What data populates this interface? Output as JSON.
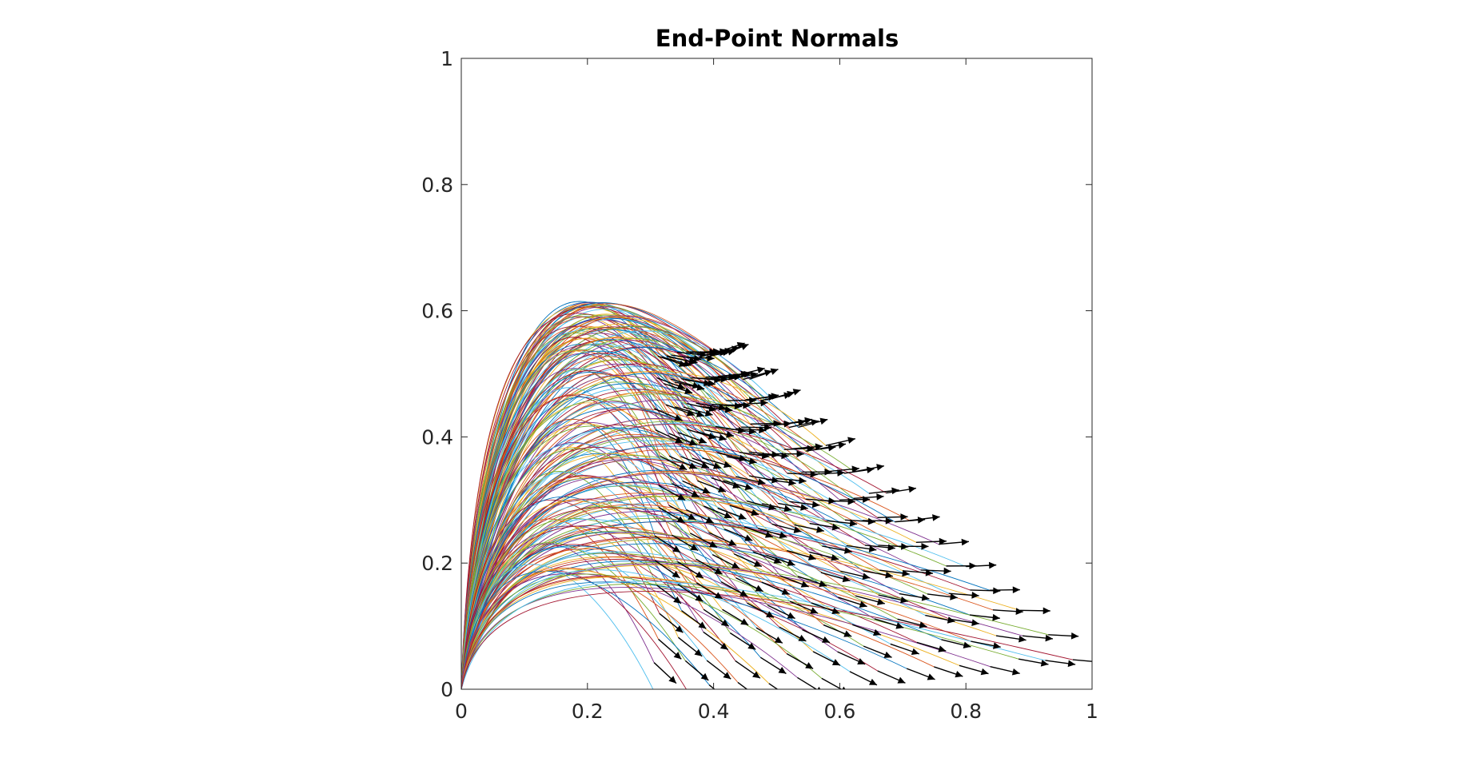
{
  "chart_data": {
    "type": "line",
    "title": "End-Point Normals",
    "xlabel": "",
    "ylabel": "",
    "xlim": [
      0,
      1
    ],
    "ylim": [
      0,
      1
    ],
    "xticks": [
      "0",
      "0.2",
      "0.4",
      "0.6",
      "0.8",
      "1"
    ],
    "yticks": [
      "0",
      "0.2",
      "0.4",
      "0.6",
      "0.8",
      "1"
    ],
    "grid": false,
    "legend": "none",
    "description_series": {
      "curve_family": "Many curves start at the origin (0,0), rise and arc over to end points in the region x 0.3–0.97, y 0–0.53; curve heights up to about 0.6",
      "normals": "Black arrows drawn at each end point, indicating the normal direction"
    },
    "endpoint_grid": {
      "rows": 14,
      "cols": 16,
      "corners": {
        "top_left": [
          0.31,
          0.53
        ],
        "top_right": [
          0.41,
          0.53
        ],
        "bottom_left": [
          0.31,
          0.0
        ],
        "bottom_right": [
          0.97,
          0.05
        ]
      }
    },
    "max_curve_height": 0.605,
    "palette": [
      "#0072bd",
      "#d95319",
      "#edb120",
      "#7e2f8e",
      "#77ac30",
      "#4dbeee",
      "#a2142f"
    ],
    "arrow_color": "#000000"
  }
}
